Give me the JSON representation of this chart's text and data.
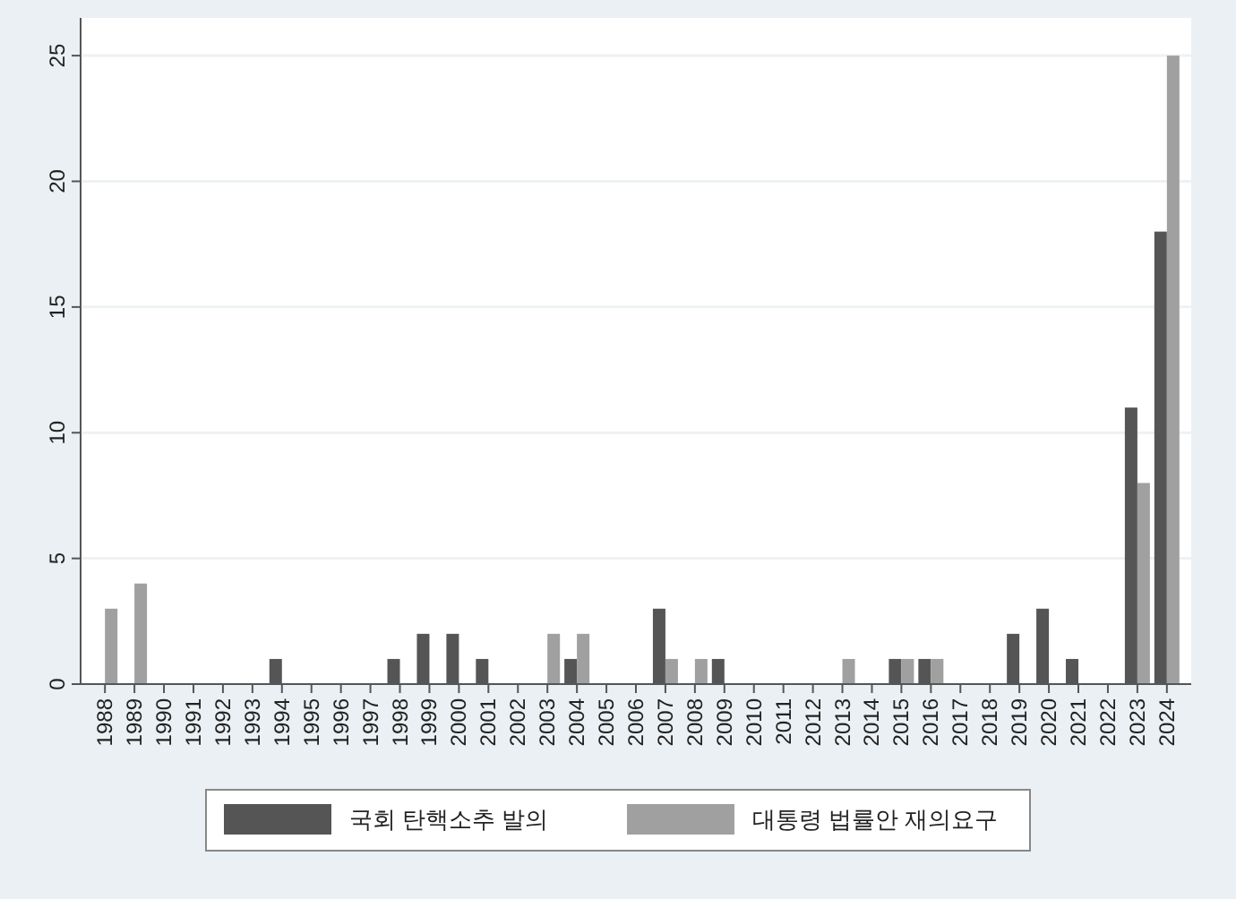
{
  "chart_data": {
    "type": "bar",
    "categories": [
      "1988",
      "1989",
      "1990",
      "1991",
      "1992",
      "1993",
      "1994",
      "1995",
      "1996",
      "1997",
      "1998",
      "1999",
      "2000",
      "2001",
      "2002",
      "2003",
      "2004",
      "2005",
      "2006",
      "2007",
      "2008",
      "2009",
      "2010",
      "2011",
      "2012",
      "2013",
      "2014",
      "2015",
      "2016",
      "2017",
      "2018",
      "2019",
      "2020",
      "2021",
      "2022",
      "2023",
      "2024"
    ],
    "series": [
      {
        "name": "국회 탄핵소추 발의",
        "color": "#555555",
        "values": [
          0,
          0,
          0,
          0,
          0,
          0,
          1,
          0,
          0,
          0,
          1,
          2,
          2,
          1,
          0,
          0,
          1,
          0,
          0,
          3,
          0,
          1,
          0,
          0,
          0,
          0,
          0,
          1,
          1,
          0,
          0,
          2,
          3,
          1,
          0,
          11,
          18
        ]
      },
      {
        "name": "대통령 법률안 재의요구",
        "color": "#a0a0a0",
        "values": [
          3,
          4,
          0,
          0,
          0,
          0,
          0,
          0,
          0,
          0,
          0,
          0,
          0,
          0,
          0,
          2,
          2,
          0,
          0,
          1,
          1,
          0,
          0,
          0,
          0,
          1,
          0,
          1,
          1,
          0,
          0,
          0,
          0,
          0,
          0,
          8,
          25
        ]
      }
    ],
    "ylim": [
      0,
      26.5
    ],
    "yticks": [
      0,
      5,
      10,
      15,
      20,
      25
    ],
    "grid": "y",
    "legend": "bottom"
  }
}
